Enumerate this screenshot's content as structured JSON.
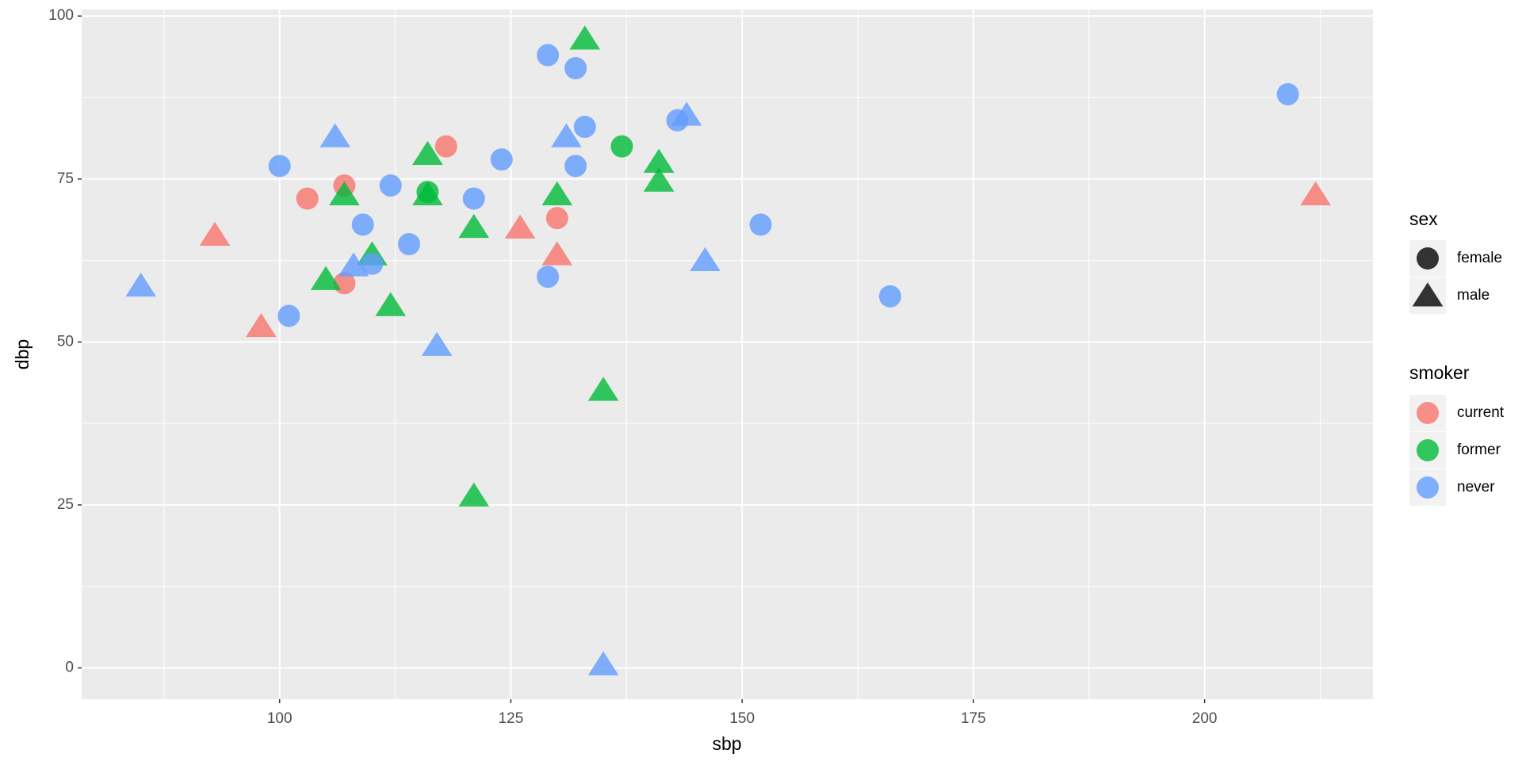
{
  "chart_data": {
    "type": "scatter",
    "x_label": "sbp",
    "y_label": "dbp",
    "xlim": [
      78.6,
      218.2
    ],
    "ylim": [
      -4.8,
      101
    ],
    "xticks": [
      100,
      125,
      150,
      175,
      200
    ],
    "yticks": [
      0,
      25,
      50,
      75,
      100
    ],
    "grid": true,
    "legend_position": "right",
    "shape_legend": {
      "title": "sex",
      "levels": [
        "female",
        "male"
      ]
    },
    "color_legend_title": "smoker",
    "series": [
      {
        "name": "current",
        "color": "#F8766D",
        "x": [
          103,
          107,
          107,
          118,
          130,
          93,
          98,
          126,
          130,
          212
        ],
        "y": [
          72,
          74,
          59,
          80,
          69,
          66.4,
          52.4,
          67.5,
          63.4,
          72.6
        ],
        "sex": [
          "female",
          "female",
          "female",
          "female",
          "female",
          "male",
          "male",
          "male",
          "male",
          "male"
        ]
      },
      {
        "name": "former",
        "color": "#00BA38",
        "x": [
          116,
          137,
          133,
          116,
          107,
          116,
          121,
          130,
          110,
          105,
          112,
          135,
          121,
          141,
          141
        ],
        "y": [
          73,
          80,
          96.5,
          78.8,
          72.6,
          72.6,
          67.6,
          72.6,
          63.4,
          59.6,
          55.6,
          42.6,
          26.4,
          77.6,
          74.7
        ],
        "sex": [
          "female",
          "female",
          "male",
          "male",
          "male",
          "male",
          "male",
          "male",
          "male",
          "male",
          "male",
          "male",
          "male",
          "male",
          "male"
        ]
      },
      {
        "name": "never",
        "color": "#619CFF",
        "x": [
          100,
          101,
          109,
          110,
          112,
          114,
          121,
          124,
          129,
          129,
          132,
          132,
          133,
          143,
          152,
          166,
          209,
          85,
          106,
          108,
          117,
          131,
          144,
          146,
          135
        ],
        "y": [
          77,
          54,
          68,
          62,
          74,
          65,
          72,
          78,
          94,
          60,
          92,
          77,
          83,
          84,
          68,
          57,
          88,
          58.6,
          81.5,
          61.7,
          49.5,
          81.5,
          84.8,
          62.5,
          0.5
        ],
        "sex": [
          "female",
          "female",
          "female",
          "female",
          "female",
          "female",
          "female",
          "female",
          "female",
          "female",
          "female",
          "female",
          "female",
          "female",
          "female",
          "female",
          "female",
          "male",
          "male",
          "male",
          "male",
          "male",
          "male",
          "male",
          "male"
        ]
      }
    ]
  }
}
